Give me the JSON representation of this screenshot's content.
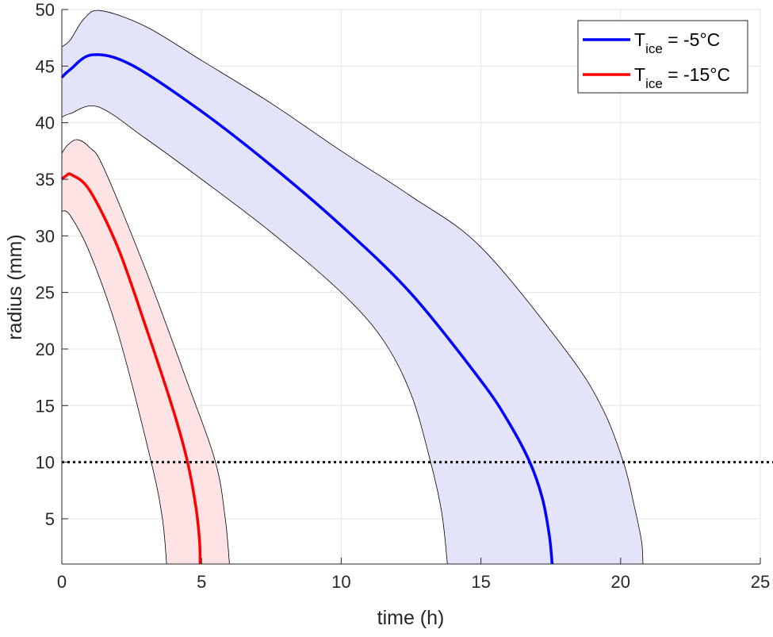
{
  "chart_data": {
    "type": "line",
    "title": "",
    "xlabel": "time (h)",
    "ylabel": "radius (mm)",
    "xlim": [
      0,
      25
    ],
    "ylim": [
      1,
      50
    ],
    "xticks": [
      0,
      5,
      10,
      15,
      20,
      25
    ],
    "yticks": [
      5,
      10,
      15,
      20,
      25,
      30,
      35,
      40,
      45,
      50
    ],
    "grid": true,
    "legend_position": "top-right",
    "reference_line": {
      "y": 10,
      "style": "dotted",
      "color": "#000000"
    },
    "series": [
      {
        "name": "T_ice = -5°C",
        "legend_main": "T",
        "legend_sub": "ice",
        "legend_rest": " = -5°C",
        "color": "#0000ff",
        "band_color": "#e3e3fa",
        "x": [
          0,
          0.3,
          1.1,
          2.5,
          5,
          7.5,
          10,
          12.5,
          15,
          16,
          16.75,
          17.2,
          17.45,
          17.55
        ],
        "y": [
          44,
          44.7,
          46,
          45.1,
          41,
          36.2,
          30.9,
          24.9,
          17.2,
          13.5,
          10,
          6.8,
          3.5,
          1
        ],
        "upper": {
          "x": [
            0,
            0.3,
            0.8,
            1.4,
            3,
            5,
            7.5,
            10,
            12.5,
            15,
            18,
            19.3,
            20.1,
            20.5,
            20.75,
            20.8
          ],
          "y": [
            46.7,
            47.3,
            49.2,
            49.9,
            48.5,
            45.5,
            41.7,
            37.5,
            33.5,
            29,
            20,
            15,
            10,
            6,
            3,
            1
          ]
        },
        "lower": {
          "x": [
            0,
            0.3,
            1.3,
            3,
            5,
            7.5,
            10,
            11.5,
            12.5,
            13.2,
            13.6,
            13.8
          ],
          "y": [
            40.5,
            40.8,
            41.4,
            38.6,
            35,
            30.3,
            25,
            20.8,
            16,
            10,
            5.5,
            1
          ]
        }
      },
      {
        "name": "T_ice = -15°C",
        "legend_main": "T",
        "legend_sub": "ice",
        "legend_rest": " = -15°C",
        "color": "#ff0000",
        "band_color": "#fde3e3",
        "x": [
          0,
          0.15,
          0.35,
          1,
          2,
          3,
          4,
          4.5,
          4.8,
          4.93,
          4.95
        ],
        "y": [
          35,
          35.3,
          35.4,
          34,
          29,
          22,
          14.5,
          10,
          6,
          3,
          1
        ],
        "upper": {
          "x": [
            0,
            0.2,
            0.55,
            1,
            1.5,
            3,
            4.5,
            5.5,
            5.85,
            6.0
          ],
          "y": [
            37.3,
            38,
            38.5,
            37.8,
            36,
            27,
            17,
            10,
            5,
            1
          ]
        },
        "lower": {
          "x": [
            0,
            0.3,
            1,
            2,
            3.2,
            3.6,
            3.75
          ],
          "y": [
            32.2,
            31.8,
            28.5,
            21.5,
            10,
            5,
            1
          ]
        }
      }
    ]
  }
}
